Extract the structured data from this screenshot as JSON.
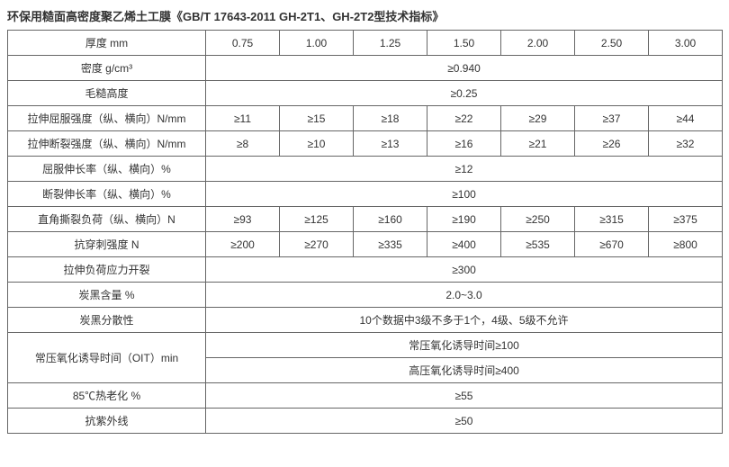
{
  "title": "环保用糙面高密度聚乙烯土工膜《GB/T 17643-2011 GH-2T1、GH-2T2型技术指标》",
  "header": {
    "label": "厚度 mm",
    "cols": [
      "0.75",
      "1.00",
      "1.25",
      "1.50",
      "2.00",
      "2.50",
      "3.00"
    ]
  },
  "rows": [
    {
      "label": "密度 g/cm³",
      "span": "≥0.940"
    },
    {
      "label": "毛糙高度",
      "span": "≥0.25"
    },
    {
      "label": "拉伸屈服强度（纵、横向）N/mm",
      "cells": [
        "≥11",
        "≥15",
        "≥18",
        "≥22",
        "≥29",
        "≥37",
        "≥44"
      ]
    },
    {
      "label": "拉伸断裂强度（纵、横向）N/mm",
      "cells": [
        "≥8",
        "≥10",
        "≥13",
        "≥16",
        "≥21",
        "≥26",
        "≥32"
      ]
    },
    {
      "label": "屈服伸长率（纵、横向）%",
      "span": "≥12"
    },
    {
      "label": "断裂伸长率（纵、横向）%",
      "span": "≥100"
    },
    {
      "label": "直角撕裂负荷（纵、横向）N",
      "cells": [
        "≥93",
        "≥125",
        "≥160",
        "≥190",
        "≥250",
        "≥315",
        "≥375"
      ]
    },
    {
      "label": "抗穿刺强度 N",
      "cells": [
        "≥200",
        "≥270",
        "≥335",
        "≥400",
        "≥535",
        "≥670",
        "≥800"
      ]
    },
    {
      "label": "拉伸负荷应力开裂",
      "span": "≥300"
    },
    {
      "label": "炭黑含量 %",
      "span": "2.0~3.0"
    },
    {
      "label": "炭黑分散性",
      "span": "10个数据中3级不多于1个，4级、5级不允许"
    },
    {
      "label": "常压氧化诱导时间（OIT）min",
      "multi": [
        "常压氧化诱导时间≥100",
        "高压氧化诱导时间≥400"
      ]
    },
    {
      "label": "85℃热老化 %",
      "span": "≥55"
    },
    {
      "label": "抗紫外线",
      "span": "≥50"
    }
  ],
  "colWidthLabel": 220,
  "colWidthData": 82
}
